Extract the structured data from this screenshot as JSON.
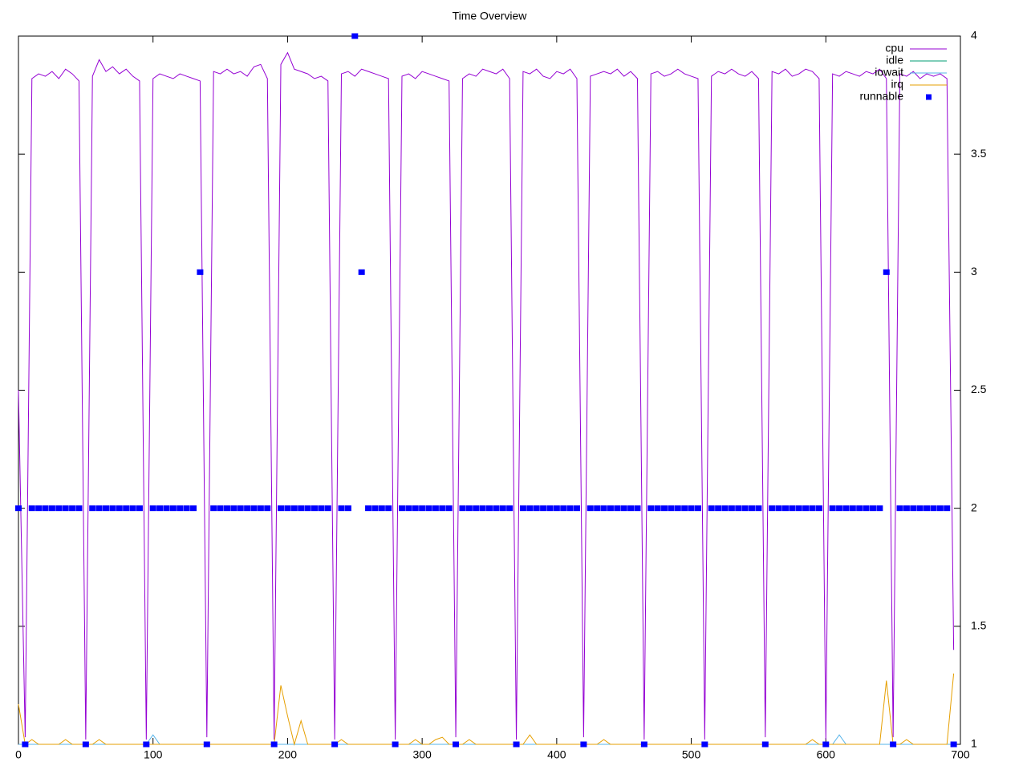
{
  "chart_data": {
    "type": "line",
    "title": "Time Overview",
    "x": [
      0,
      5,
      10,
      15,
      20,
      25,
      30,
      35,
      40,
      45,
      50,
      55,
      60,
      65,
      70,
      75,
      80,
      85,
      90,
      95,
      100,
      105,
      110,
      115,
      120,
      125,
      130,
      135,
      140,
      145,
      150,
      155,
      160,
      165,
      170,
      175,
      180,
      185,
      190,
      195,
      200,
      205,
      210,
      215,
      220,
      225,
      230,
      235,
      240,
      245,
      250,
      255,
      260,
      265,
      270,
      275,
      280,
      285,
      290,
      295,
      300,
      305,
      310,
      315,
      320,
      325,
      330,
      335,
      340,
      345,
      350,
      355,
      360,
      365,
      370,
      375,
      380,
      385,
      390,
      395,
      400,
      405,
      410,
      415,
      420,
      425,
      430,
      435,
      440,
      445,
      450,
      455,
      460,
      465,
      470,
      475,
      480,
      485,
      490,
      495,
      500,
      505,
      510,
      515,
      520,
      525,
      530,
      535,
      540,
      545,
      550,
      555,
      560,
      565,
      570,
      575,
      580,
      585,
      590,
      595,
      600,
      605,
      610,
      615,
      620,
      625,
      630,
      635,
      640,
      645,
      650,
      655,
      660,
      665,
      670,
      675,
      680,
      685,
      690,
      695
    ],
    "series": [
      {
        "name": "cpu",
        "color": "#9400d3",
        "style": "lines",
        "values": [
          2.5,
          1.03,
          3.82,
          3.84,
          3.83,
          3.85,
          3.82,
          3.86,
          3.84,
          3.81,
          1.02,
          3.83,
          3.9,
          3.85,
          3.87,
          3.84,
          3.86,
          3.83,
          3.81,
          1.02,
          3.82,
          3.84,
          3.83,
          3.82,
          3.84,
          3.83,
          3.82,
          3.81,
          1.03,
          3.85,
          3.84,
          3.86,
          3.84,
          3.85,
          3.83,
          3.87,
          3.88,
          3.82,
          1.02,
          3.88,
          3.93,
          3.86,
          3.85,
          3.84,
          3.82,
          3.83,
          3.81,
          1.02,
          3.84,
          3.85,
          3.83,
          3.86,
          3.85,
          3.84,
          3.83,
          3.82,
          1.02,
          3.83,
          3.84,
          3.82,
          3.85,
          3.84,
          3.83,
          3.82,
          3.81,
          1.03,
          3.82,
          3.84,
          3.83,
          3.86,
          3.85,
          3.84,
          3.86,
          3.82,
          1.02,
          3.85,
          3.84,
          3.86,
          3.83,
          3.82,
          3.85,
          3.84,
          3.86,
          3.82,
          1.03,
          3.83,
          3.84,
          3.85,
          3.84,
          3.86,
          3.83,
          3.85,
          3.82,
          1.02,
          3.84,
          3.85,
          3.83,
          3.84,
          3.86,
          3.84,
          3.83,
          3.82,
          1.02,
          3.83,
          3.85,
          3.84,
          3.86,
          3.84,
          3.83,
          3.85,
          3.82,
          1.03,
          3.85,
          3.84,
          3.86,
          3.83,
          3.84,
          3.86,
          3.85,
          3.82,
          1.02,
          3.84,
          3.83,
          3.85,
          3.84,
          3.83,
          3.85,
          3.84,
          3.86,
          3.82,
          1.03,
          3.84,
          3.83,
          3.85,
          3.82,
          3.84,
          3.83,
          3.84,
          3.82,
          1.4
        ]
      },
      {
        "name": "idle",
        "color": "#009e73",
        "style": "lines",
        "values": [
          1,
          1,
          1,
          1,
          1,
          1,
          1,
          1,
          1,
          1,
          1,
          1,
          1,
          1,
          1,
          1,
          1,
          1,
          1,
          1,
          1,
          1,
          1,
          1,
          1,
          1,
          1,
          1,
          1,
          1,
          1,
          1,
          1,
          1,
          1,
          1,
          1,
          1,
          1,
          1,
          1,
          1,
          1,
          1,
          1,
          1,
          1,
          1,
          1,
          1,
          1,
          1,
          1,
          1,
          1,
          1,
          1,
          1,
          1,
          1,
          1,
          1,
          1,
          1,
          1,
          1,
          1,
          1,
          1,
          1,
          1,
          1,
          1,
          1,
          1,
          1,
          1,
          1,
          1,
          1,
          1,
          1,
          1,
          1,
          1,
          1,
          1,
          1,
          1,
          1,
          1,
          1,
          1,
          1,
          1,
          1,
          1,
          1,
          1,
          1,
          1,
          1,
          1,
          1,
          1,
          1,
          1,
          1,
          1,
          1,
          1,
          1,
          1,
          1,
          1,
          1,
          1,
          1,
          1,
          1,
          1,
          1,
          1,
          1,
          1,
          1,
          1,
          1,
          1,
          1,
          1,
          1,
          1,
          1,
          1,
          1,
          1,
          1,
          1,
          1
        ]
      },
      {
        "name": "iowait",
        "color": "#56b4e9",
        "style": "lines",
        "values": [
          1,
          1,
          1,
          1,
          1,
          1,
          1,
          1,
          1,
          1,
          1,
          1,
          1,
          1,
          1,
          1,
          1,
          1,
          1,
          1,
          1.04,
          1,
          1,
          1,
          1,
          1,
          1,
          1,
          1,
          1,
          1,
          1,
          1,
          1,
          1,
          1,
          1,
          1,
          1,
          1,
          1,
          1,
          1,
          1,
          1,
          1,
          1,
          1,
          1,
          1,
          1,
          1,
          1,
          1,
          1,
          1,
          1,
          1,
          1,
          1,
          1,
          1,
          1,
          1,
          1,
          1,
          1,
          1,
          1,
          1,
          1,
          1,
          1,
          1,
          1,
          1,
          1,
          1,
          1,
          1,
          1,
          1,
          1,
          1,
          1,
          1,
          1,
          1,
          1,
          1,
          1,
          1,
          1,
          1,
          1,
          1,
          1,
          1,
          1,
          1,
          1,
          1,
          1,
          1,
          1,
          1,
          1,
          1,
          1,
          1,
          1,
          1,
          1,
          1,
          1,
          1,
          1,
          1,
          1,
          1,
          1,
          1,
          1.04,
          1,
          1,
          1,
          1,
          1,
          1,
          1,
          1,
          1,
          1,
          1,
          1,
          1,
          1,
          1,
          1,
          1
        ]
      },
      {
        "name": "irq",
        "color": "#e69f00",
        "style": "lines",
        "values": [
          1.17,
          1,
          1.02,
          1,
          1,
          1,
          1,
          1.02,
          1,
          1,
          1,
          1,
          1.02,
          1,
          1,
          1,
          1,
          1,
          1,
          1,
          1,
          1,
          1,
          1,
          1,
          1,
          1,
          1,
          1,
          1,
          1,
          1,
          1,
          1,
          1,
          1,
          1,
          1,
          1,
          1.25,
          1.12,
          1,
          1.1,
          1,
          1,
          1,
          1,
          1,
          1.02,
          1,
          1,
          1,
          1,
          1,
          1,
          1,
          1,
          1,
          1,
          1.02,
          1,
          1,
          1.02,
          1.03,
          1,
          1,
          1,
          1.02,
          1,
          1,
          1,
          1,
          1,
          1,
          1,
          1,
          1.04,
          1,
          1,
          1,
          1,
          1,
          1,
          1,
          1,
          1,
          1,
          1.02,
          1,
          1,
          1,
          1,
          1,
          1,
          1,
          1,
          1,
          1,
          1,
          1,
          1,
          1,
          1,
          1,
          1,
          1,
          1,
          1,
          1,
          1,
          1,
          1,
          1,
          1,
          1,
          1,
          1,
          1,
          1.02,
          1,
          1,
          1,
          1,
          1,
          1,
          1,
          1,
          1,
          1,
          1.27,
          1,
          1,
          1.02,
          1,
          1,
          1,
          1,
          1,
          1,
          1.3
        ]
      },
      {
        "name": "runnable",
        "color": "#0000ff",
        "style": "points",
        "values": [
          2,
          1,
          2,
          2,
          2,
          2,
          2,
          2,
          2,
          2,
          1,
          2,
          2,
          2,
          2,
          2,
          2,
          2,
          2,
          1,
          2,
          2,
          2,
          2,
          2,
          2,
          2,
          3,
          1,
          2,
          2,
          2,
          2,
          2,
          2,
          2,
          2,
          2,
          1,
          2,
          2,
          2,
          2,
          2,
          2,
          2,
          2,
          1,
          2,
          2,
          4,
          3,
          2,
          2,
          2,
          2,
          1,
          2,
          2,
          2,
          2,
          2,
          2,
          2,
          2,
          1,
          2,
          2,
          2,
          2,
          2,
          2,
          2,
          2,
          1,
          2,
          2,
          2,
          2,
          2,
          2,
          2,
          2,
          2,
          1,
          2,
          2,
          2,
          2,
          2,
          2,
          2,
          2,
          1,
          2,
          2,
          2,
          2,
          2,
          2,
          2,
          2,
          1,
          2,
          2,
          2,
          2,
          2,
          2,
          2,
          2,
          1,
          2,
          2,
          2,
          2,
          2,
          2,
          2,
          2,
          1,
          2,
          2,
          2,
          2,
          2,
          2,
          2,
          2,
          3,
          1,
          2,
          2,
          2,
          2,
          2,
          2,
          2,
          2,
          1
        ]
      }
    ],
    "xlim": [
      0,
      700
    ],
    "xticks": [
      0,
      100,
      200,
      300,
      400,
      500,
      600,
      700
    ],
    "ylim": [
      1,
      4
    ],
    "yticks": [
      1,
      1.5,
      2,
      2.5,
      3,
      3.5,
      4
    ],
    "legend": "top-right",
    "grid": false
  }
}
